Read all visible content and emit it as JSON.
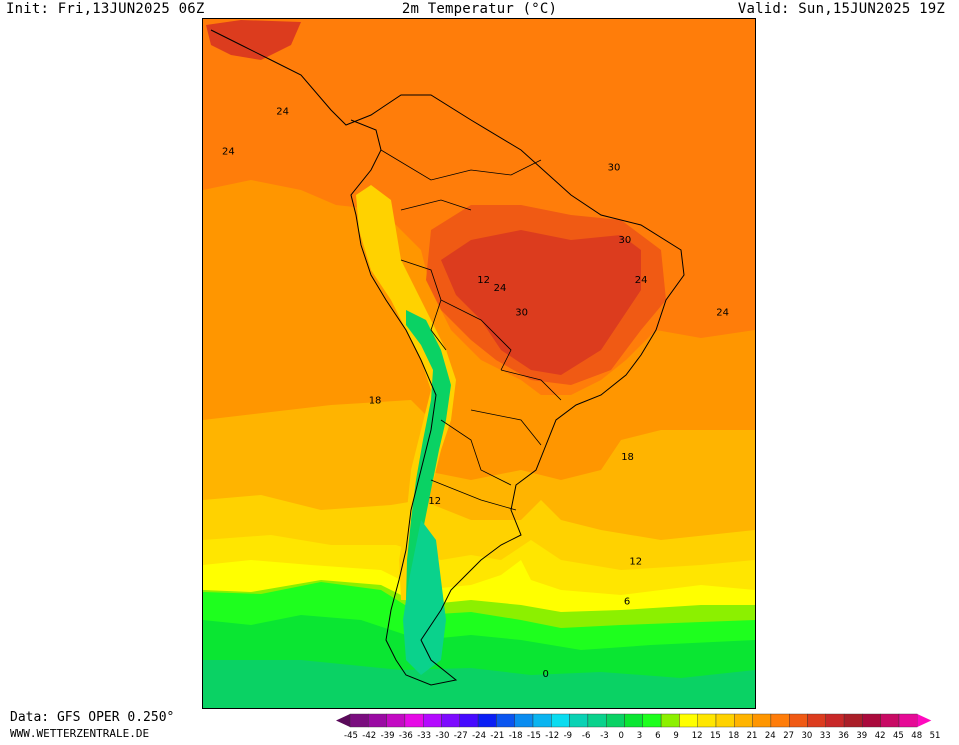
{
  "header": {
    "init": "Init: Fri,13JUN2025 06Z",
    "title": "2m Temperatur (°C)",
    "valid": "Valid: Sun,15JUN2025 19Z"
  },
  "footer": {
    "data_source": "Data: GFS OPER 0.250°",
    "website": "WWW.WETTERZENTRALE.DE"
  },
  "map": {
    "region": "South America",
    "contour_labels": [
      {
        "value": "24",
        "lon": -108.5,
        "lat": 3
      },
      {
        "value": "24",
        "lon": -118.5,
        "lat": -2
      },
      {
        "value": "30",
        "lon": -47.5,
        "lat": -4
      },
      {
        "value": "30",
        "lon": -45.5,
        "lat": -13
      },
      {
        "value": "12",
        "lon": -71.5,
        "lat": -18
      },
      {
        "value": "24",
        "lon": -68.5,
        "lat": -19
      },
      {
        "value": "30",
        "lon": -64.5,
        "lat": -22
      },
      {
        "value": "24",
        "lon": -42.5,
        "lat": -18
      },
      {
        "value": "24",
        "lon": -27.5,
        "lat": -22
      },
      {
        "value": "18",
        "lon": -91.5,
        "lat": -33
      },
      {
        "value": "18",
        "lon": -45,
        "lat": -40
      },
      {
        "value": "12",
        "lon": -80.5,
        "lat": -45.5
      },
      {
        "value": "12",
        "lon": -43.5,
        "lat": -53
      },
      {
        "value": "6",
        "lon": -44.5,
        "lat": -58
      },
      {
        "value": "0",
        "lon": -59.5,
        "lat": -67
      }
    ]
  },
  "legend": {
    "ticks": [
      "-45",
      "-42",
      "-39",
      "-36",
      "-33",
      "-30",
      "-27",
      "-24",
      "-21",
      "-18",
      "-15",
      "-12",
      "-9",
      "-6",
      "-3",
      "0",
      "3",
      "6",
      "9",
      "12",
      "15",
      "18",
      "21",
      "24",
      "27",
      "30",
      "33",
      "36",
      "39",
      "42",
      "45",
      "48",
      "51"
    ],
    "colors": [
      "#5a0a5a",
      "#7a0d7f",
      "#9a0aa3",
      "#c30ac3",
      "#e60ae6",
      "#b40aff",
      "#7d0aff",
      "#460aff",
      "#0a1ef5",
      "#0a55f0",
      "#0a8cf0",
      "#0ab4f0",
      "#0adcf0",
      "#0ad2b4",
      "#0ad28c",
      "#0ad264",
      "#0ae632",
      "#1eff1e",
      "#8cf000",
      "#ffff00",
      "#ffe600",
      "#ffd200",
      "#ffb400",
      "#ff9600",
      "#ff7d0a",
      "#f05a14",
      "#dc3c1e",
      "#c82828",
      "#aa1e28",
      "#aa0a3c",
      "#c80a64",
      "#e60a96",
      "#ff0abe"
    ]
  }
}
